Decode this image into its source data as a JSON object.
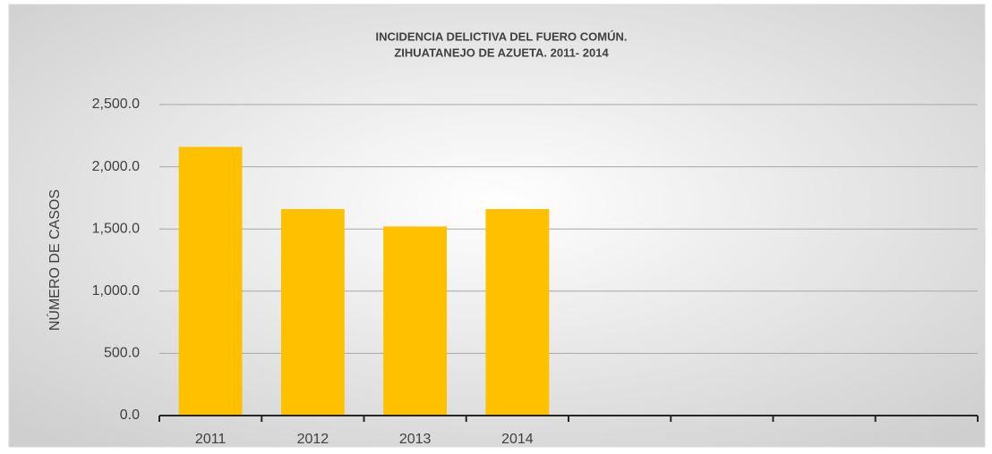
{
  "chart_data": {
    "type": "bar",
    "title": [
      "INCIDENCIA DELICTIVA DEL FUERO COMÚN.",
      "ZIHUATANEJO DE AZUETA. 2011- 2014"
    ],
    "y_label": "NÚMERO DE CASOS",
    "categories": [
      "2011",
      "2012",
      "2013",
      "2014",
      null,
      null,
      null,
      null
    ],
    "values": [
      2160,
      1660,
      1520,
      1660,
      null,
      null,
      null,
      null
    ],
    "color": "#ffc000",
    "ylim": [
      0,
      2500
    ],
    "yticks": [
      {
        "value": 0,
        "label": "0.0"
      },
      {
        "value": 500,
        "label": "500.0"
      },
      {
        "value": 1000,
        "label": "1,000.0"
      },
      {
        "value": 1500,
        "label": "1,500.0"
      },
      {
        "value": 2000,
        "label": "2,000.0"
      },
      {
        "value": 2500,
        "label": "2,500.0"
      }
    ],
    "grid": true
  }
}
